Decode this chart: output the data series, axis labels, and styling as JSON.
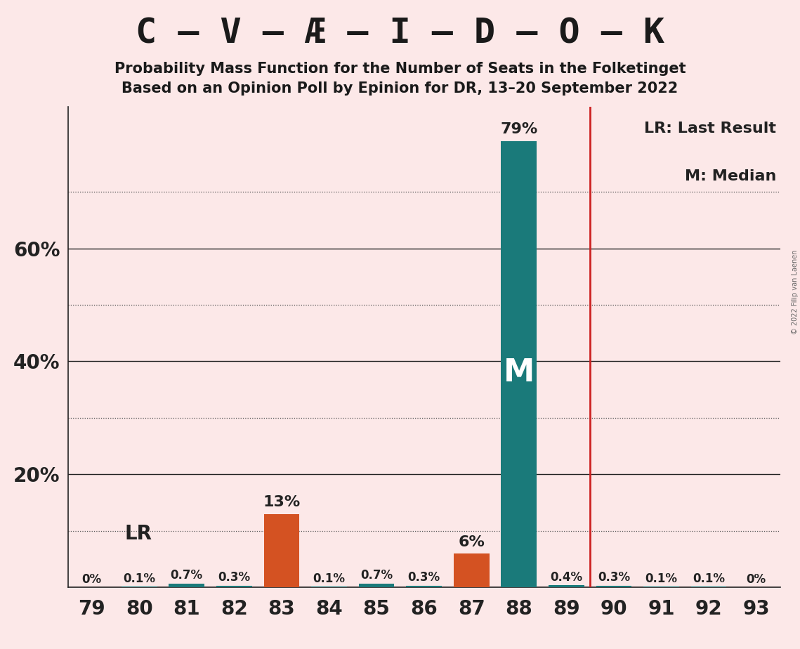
{
  "title": "C – V – Æ – I – D – O – K",
  "subtitle1": "Probability Mass Function for the Number of Seats in the Folketinget",
  "subtitle2": "Based on an Opinion Poll by Epinion for DR, 13–20 September 2022",
  "copyright": "© 2022 Filip van Laenen",
  "seats": [
    79,
    80,
    81,
    82,
    83,
    84,
    85,
    86,
    87,
    88,
    89,
    90,
    91,
    92,
    93
  ],
  "probabilities": [
    0.0,
    0.1,
    0.7,
    0.3,
    13.0,
    0.1,
    0.7,
    0.3,
    6.0,
    79.0,
    0.4,
    0.3,
    0.1,
    0.1,
    0.0
  ],
  "bar_colors": [
    "#1a7a7a",
    "#1a7a7a",
    "#1a7a7a",
    "#1a7a7a",
    "#d45222",
    "#1a7a7a",
    "#1a7a7a",
    "#1a7a7a",
    "#d45222",
    "#1a7a7a",
    "#1a7a7a",
    "#1a7a7a",
    "#1a7a7a",
    "#1a7a7a",
    "#1a7a7a"
  ],
  "median_seat": 88,
  "last_result_seat": 89.5,
  "background_color": "#fce8e8",
  "bar_color_teal": "#1a7a7a",
  "bar_color_orange": "#d45222",
  "median_label": "M",
  "lr_label": "LR",
  "legend_lr": "LR: Last Result",
  "legend_m": "M: Median",
  "yticks": [
    20,
    40,
    60
  ],
  "dotted_lines": [
    10,
    30,
    50,
    70
  ],
  "ylim": [
    0,
    85
  ],
  "xlim": [
    78.5,
    93.5
  ],
  "prob_labels": [
    "0%",
    "0.1%",
    "0.7%",
    "0.3%",
    "13%",
    "0.1%",
    "0.7%",
    "0.3%",
    "6%",
    "79%",
    "0.4%",
    "0.3%",
    "0.1%",
    "0.1%",
    "0%"
  ]
}
